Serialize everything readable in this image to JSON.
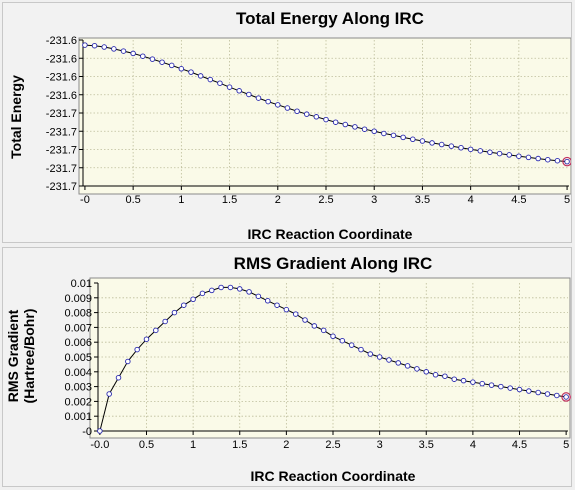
{
  "chart_data": [
    {
      "type": "line",
      "title": "Total Energy Along IRC",
      "xlabel": "IRC Reaction Coordinate",
      "ylabel": "Total Energy",
      "xlim": [
        -0.02,
        5.02
      ],
      "ylim": [
        -231.7,
        -231.6
      ],
      "x_ticks": [
        "-0",
        "0.5",
        "1",
        "1.5",
        "2",
        "2.5",
        "3",
        "3.5",
        "4",
        "4.5",
        "5"
      ],
      "y_ticks": [
        "-231.6",
        "-231.6",
        "-231.6",
        "-231.6",
        "-231.7",
        "-231.7",
        "-231.7",
        "-231.7",
        "-231.7"
      ],
      "grid": true,
      "highlighted_point": "last",
      "x": [
        0.0,
        0.1,
        0.2,
        0.3,
        0.4,
        0.5,
        0.6,
        0.7,
        0.8,
        0.9,
        1.0,
        1.1,
        1.2,
        1.3,
        1.4,
        1.5,
        1.6,
        1.7,
        1.8,
        1.9,
        2.0,
        2.1,
        2.2,
        2.3,
        2.4,
        2.5,
        2.6,
        2.7,
        2.8,
        2.9,
        3.0,
        3.1,
        3.2,
        3.3,
        3.4,
        3.5,
        3.6,
        3.7,
        3.8,
        3.9,
        4.0,
        4.1,
        4.2,
        4.3,
        4.4,
        4.5,
        4.6,
        4.7,
        4.8,
        4.9,
        5.0
      ],
      "y": [
        -231.6035,
        -231.6039,
        -231.6048,
        -231.6061,
        -231.6076,
        -231.6092,
        -231.6111,
        -231.6131,
        -231.6152,
        -231.6174,
        -231.6197,
        -231.622,
        -231.6246,
        -231.6271,
        -231.6296,
        -231.6323,
        -231.6348,
        -231.6373,
        -231.6398,
        -231.6422,
        -231.6444,
        -231.6466,
        -231.6488,
        -231.6508,
        -231.6526,
        -231.6545,
        -231.6563,
        -231.6579,
        -231.6595,
        -231.6611,
        -231.6625,
        -231.664,
        -231.6653,
        -231.6667,
        -231.668,
        -231.6692,
        -231.6705,
        -231.6716,
        -231.6727,
        -231.6738,
        -231.6749,
        -231.6759,
        -231.6769,
        -231.6778,
        -231.6787,
        -231.6796,
        -231.6804,
        -231.6812,
        -231.682,
        -231.6827,
        -231.6833
      ]
    },
    {
      "type": "line",
      "title": "RMS Gradient Along IRC",
      "xlabel": "IRC Reaction Coordinate",
      "ylabel": "RMS Gradient",
      "ylabel2": "(Hartree/Bohr)",
      "xlim": [
        -0.02,
        5.02
      ],
      "ylim": [
        0,
        0.01
      ],
      "x_ticks": [
        "-0.0",
        "0.5",
        "1",
        "1.5",
        "2",
        "2.5",
        "3",
        "3.5",
        "4",
        "4.5",
        "5"
      ],
      "y_ticks": [
        "0.01",
        "0.009",
        "0.008",
        "0.007",
        "0.006",
        "0.005",
        "0.004",
        "0.003",
        "0.002",
        "0.001",
        "-0"
      ],
      "grid": true,
      "highlighted_point": "last",
      "x": [
        0.0,
        0.1,
        0.2,
        0.3,
        0.4,
        0.5,
        0.6,
        0.7,
        0.8,
        0.9,
        1.0,
        1.1,
        1.2,
        1.3,
        1.4,
        1.5,
        1.6,
        1.7,
        1.8,
        1.9,
        2.0,
        2.1,
        2.2,
        2.3,
        2.4,
        2.5,
        2.6,
        2.7,
        2.8,
        2.9,
        3.0,
        3.1,
        3.2,
        3.3,
        3.4,
        3.5,
        3.6,
        3.7,
        3.8,
        3.9,
        4.0,
        4.1,
        4.2,
        4.3,
        4.4,
        4.5,
        4.6,
        4.7,
        4.8,
        4.9,
        5.0
      ],
      "y": [
        0.0,
        0.0025,
        0.0036,
        0.0047,
        0.0055,
        0.0062,
        0.0068,
        0.0074,
        0.008,
        0.0085,
        0.0089,
        0.0093,
        0.0095,
        0.0097,
        0.0097,
        0.0096,
        0.0094,
        0.0091,
        0.0088,
        0.0085,
        0.0082,
        0.0079,
        0.0075,
        0.0071,
        0.0068,
        0.0064,
        0.0061,
        0.0058,
        0.0055,
        0.0052,
        0.005,
        0.0048,
        0.0046,
        0.0044,
        0.0042,
        0.004,
        0.0038,
        0.0037,
        0.0035,
        0.0034,
        0.0033,
        0.0032,
        0.0031,
        0.003,
        0.0029,
        0.0028,
        0.0027,
        0.0026,
        0.0025,
        0.0024,
        0.0023
      ]
    }
  ]
}
